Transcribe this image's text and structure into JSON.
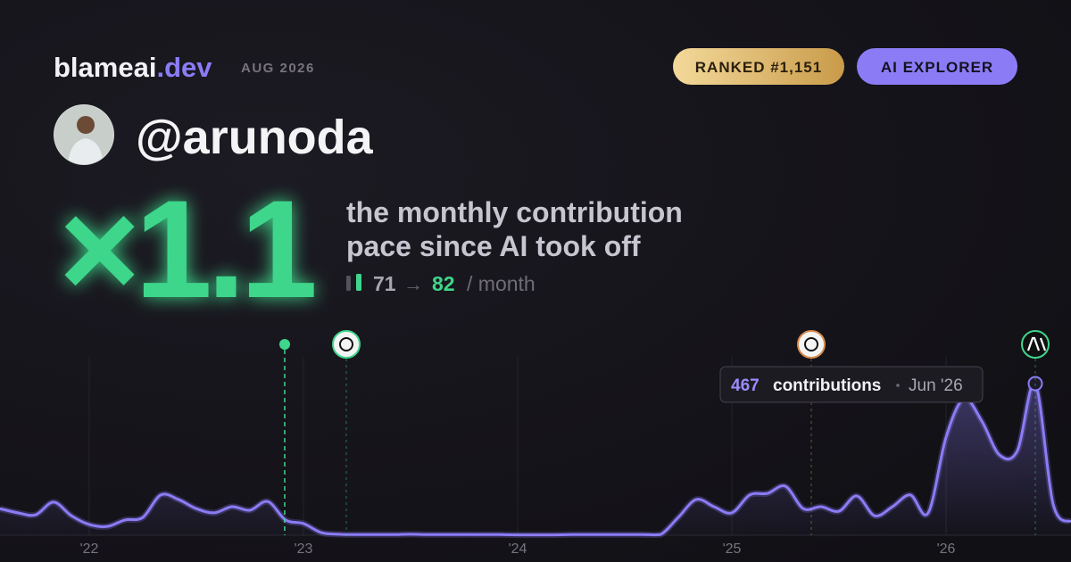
{
  "header": {
    "brand": "blameai",
    "brand_suffix": ".dev",
    "date": "AUG 2026",
    "badges": [
      "RANKED #1,151",
      "AI EXPLORER"
    ]
  },
  "user": {
    "handle": "@arunoda"
  },
  "headline": {
    "multiplier": "×1.1",
    "tagline": [
      "the monthly contribution",
      "pace since AI took off"
    ],
    "before": "71",
    "arrow": "→",
    "after": "82",
    "unit": "/ month"
  },
  "chart_data": {
    "type": "line",
    "categories": [
      null,
      null,
      null,
      null,
      null,
      "'22",
      null,
      null,
      null,
      null,
      null,
      null,
      null,
      null,
      null,
      null,
      null,
      "'23",
      null,
      null,
      null,
      null,
      null,
      null,
      null,
      null,
      null,
      null,
      null,
      "'24",
      null,
      null,
      null,
      null,
      null,
      null,
      null,
      null,
      null,
      null,
      null,
      "'25",
      null,
      null,
      null,
      null,
      null,
      null,
      null,
      null,
      null,
      null,
      null,
      "'26",
      null,
      null,
      null,
      null,
      null,
      null,
      null
    ],
    "series": [
      {
        "name": "contributions",
        "color": "#8b7cf6",
        "values": [
          82,
          69,
          63,
          102,
          60,
          33,
          27,
          47,
          55,
          124,
          110,
          82,
          69,
          88,
          77,
          104,
          47,
          36,
          8,
          3,
          2,
          2,
          2,
          3,
          2,
          2,
          2,
          2,
          2,
          1,
          1,
          1,
          2,
          2,
          2,
          2,
          2,
          2,
          55,
          110,
          88,
          69,
          124,
          129,
          151,
          82,
          88,
          74,
          121,
          60,
          88,
          124,
          69,
          302,
          420,
          352,
          247,
          261,
          467,
          96,
          41
        ]
      }
    ],
    "ylim": [
      0,
      500
    ],
    "tooltip": {
      "index": 58,
      "label": "contributions",
      "date": "Jun '26"
    }
  }
}
